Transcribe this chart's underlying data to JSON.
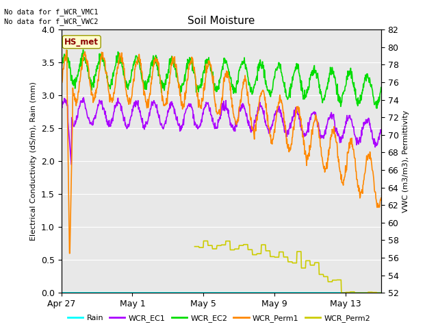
{
  "title": "Soil Moisture",
  "ylabel_left": "Electrical Conductivity (dS/m), Rain (mm)",
  "ylabel_right": "VWC (m3/m3), Permittivity",
  "ylim_left": [
    0.0,
    4.0
  ],
  "ylim_right": [
    52,
    82
  ],
  "xtick_labels": [
    "Apr 27",
    "May 1",
    "May 5",
    "May 9",
    "May 13"
  ],
  "xtick_positions": [
    0,
    4,
    8,
    12,
    16
  ],
  "xlim": [
    0,
    18
  ],
  "no_data_text1": "No data for f_WCR_VMC1",
  "no_data_text2": "No data for f_WCR_VWC2",
  "station_label": "HS_met",
  "legend_items": [
    "Rain",
    "WCR_EC1",
    "WCR_EC2",
    "WCR_Perm1",
    "WCR_Perm2"
  ],
  "colors": {
    "Rain": "#00ffff",
    "WCR_EC1": "#aa00ff",
    "WCR_EC2": "#00dd00",
    "WCR_Perm1": "#ff8800",
    "WCR_Perm2": "#cccc00",
    "background": "#e8e8e8"
  },
  "grid_color": "#ffffff",
  "line_width": 1.2,
  "yticks_left": [
    0.0,
    0.5,
    1.0,
    1.5,
    2.0,
    2.5,
    3.0,
    3.5,
    4.0
  ],
  "yticks_right": [
    52,
    54,
    56,
    58,
    60,
    62,
    64,
    66,
    68,
    70,
    72,
    74,
    76,
    78,
    80,
    82
  ]
}
